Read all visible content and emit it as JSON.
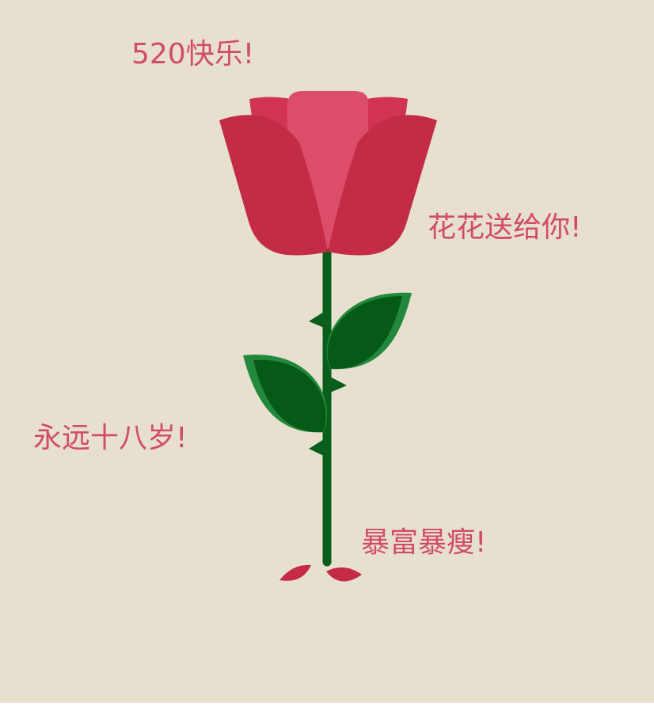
{
  "messages": {
    "happy_520": "520快乐!",
    "flowers_for_you": "花花送给你!",
    "forever_eighteen": "永远十八岁!",
    "rich_and_slim": "暴富暴瘦!"
  },
  "colors": {
    "background": "#e8e0cf",
    "text": "#d14c65",
    "petal_outer": "#c42b45",
    "petal_mid": "#d13450",
    "petal_inner": "#dc4d69",
    "stem": "#0a5e1c",
    "leaf_light": "#22883b",
    "leaf_dark": "#045a16"
  }
}
